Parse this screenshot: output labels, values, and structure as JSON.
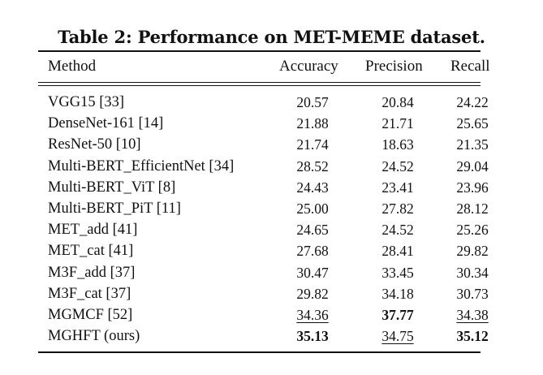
{
  "caption": "Table 2: Performance on MET-MEME dataset.",
  "headers": {
    "method": "Method",
    "accuracy": "Accuracy",
    "precision": "Precision",
    "recall": "Recall"
  },
  "rows": [
    {
      "method": "VGG15 [33]",
      "accuracy": "20.57",
      "precision": "20.84",
      "recall": "24.22",
      "style": {}
    },
    {
      "method": "DenseNet-161 [14]",
      "accuracy": "21.88",
      "precision": "21.71",
      "recall": "25.65",
      "style": {}
    },
    {
      "method": "ResNet-50 [10]",
      "accuracy": "21.74",
      "precision": "18.63",
      "recall": "21.35",
      "style": {}
    },
    {
      "method": "Multi-BERT_EfficientNet [34]",
      "accuracy": "28.52",
      "precision": "24.52",
      "recall": "29.04",
      "style": {}
    },
    {
      "method": "Multi-BERT_ViT [8]",
      "accuracy": "24.43",
      "precision": "23.41",
      "recall": "23.96",
      "style": {}
    },
    {
      "method": "Multi-BERT_PiT [11]",
      "accuracy": "25.00",
      "precision": "27.82",
      "recall": "28.12",
      "style": {}
    },
    {
      "method": "MET_add [41]",
      "accuracy": "24.65",
      "precision": "24.52",
      "recall": "25.26",
      "style": {}
    },
    {
      "method": "MET_cat [41]",
      "accuracy": "27.68",
      "precision": "28.41",
      "recall": "29.82",
      "style": {}
    },
    {
      "method": "M3F_add [37]",
      "accuracy": "30.47",
      "precision": "33.45",
      "recall": "30.34",
      "style": {}
    },
    {
      "method": "M3F_cat [37]",
      "accuracy": "29.82",
      "precision": "34.18",
      "recall": "30.73",
      "style": {}
    },
    {
      "method": "MGMCF [52]",
      "accuracy": "34.36",
      "precision": "37.77",
      "recall": "34.38",
      "style": {
        "accuracy": "underline",
        "precision": "bold",
        "recall": "underline"
      }
    },
    {
      "method": "MGHFT (ours)",
      "accuracy": "35.13",
      "precision": "34.75",
      "recall": "35.12",
      "style": {
        "accuracy": "bold",
        "precision": "underline",
        "recall": "bold"
      }
    }
  ]
}
